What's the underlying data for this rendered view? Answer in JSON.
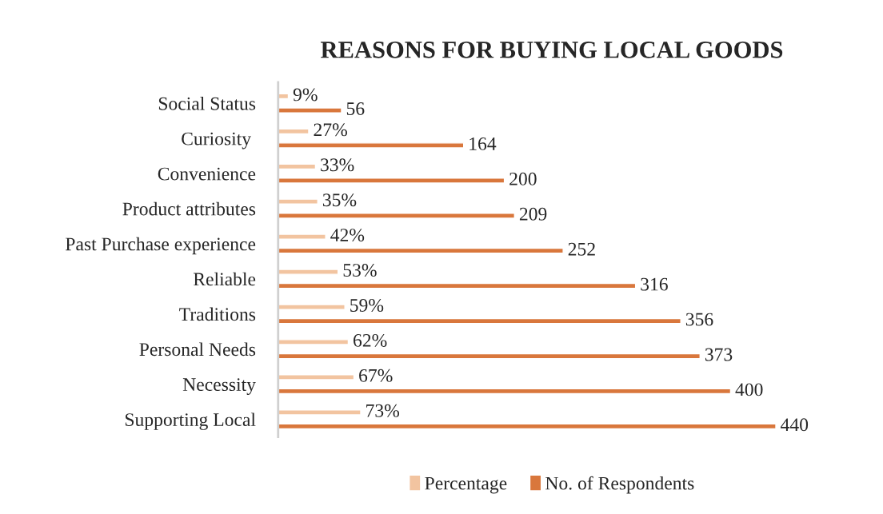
{
  "chart_data": {
    "type": "bar",
    "orientation": "horizontal",
    "title": "REASONS FOR BUYING LOCAL GOODS",
    "categories": [
      "Social Status",
      "Curiosity ",
      "Convenience",
      "Product attributes",
      "Past Purchase experience",
      "Reliable",
      "Traditions",
      "Personal Needs",
      "Necessity",
      "Supporting Local"
    ],
    "series": [
      {
        "name": "Percentage",
        "color": "#f2c4a0",
        "values": [
          9,
          27,
          33,
          35,
          42,
          53,
          59,
          62,
          67,
          73
        ],
        "value_labels": [
          "9%",
          "27%",
          "33%",
          "35%",
          "42%",
          "53%",
          "59%",
          "62%",
          "67%",
          "73%"
        ]
      },
      {
        "name": "No. of Respondents",
        "color": "#d9773c",
        "values": [
          56,
          164,
          200,
          209,
          252,
          316,
          356,
          373,
          400,
          440
        ],
        "value_labels": [
          "56",
          "164",
          "200",
          "209",
          "252",
          "316",
          "356",
          "373",
          "400",
          "440"
        ]
      }
    ],
    "legend": "bottom",
    "grid": false
  }
}
